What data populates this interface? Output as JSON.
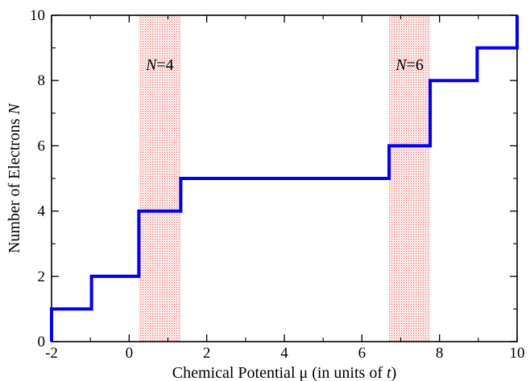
{
  "chart_data": {
    "type": "line",
    "title": "",
    "xlabel": "Chemical Potential μ (in units of t)",
    "xlabel_parts": {
      "prefix": "Chemical Potential μ (in units of ",
      "var": "t",
      "suffix": ")"
    },
    "ylabel": "Number of Electrons N",
    "ylabel_parts": {
      "prefix": "Number of Electrons ",
      "var": "N"
    },
    "xlim": [
      -2,
      10
    ],
    "ylim": [
      0,
      10
    ],
    "xticks": [
      -2,
      0,
      2,
      4,
      6,
      8,
      10
    ],
    "yticks": [
      0,
      2,
      4,
      6,
      8,
      10
    ],
    "grid": false,
    "series": [
      {
        "step": true,
        "color": "#0000ee",
        "x": [
          -2.0,
          -2.0,
          -0.97,
          -0.97,
          0.25,
          0.25,
          1.33,
          1.33,
          6.7,
          6.7,
          7.76,
          7.76,
          8.97,
          8.97,
          10.0,
          10.0
        ],
        "y": [
          0,
          1,
          1,
          2,
          2,
          4,
          4,
          5,
          5,
          6,
          6,
          8,
          8,
          9,
          9,
          10
        ]
      }
    ],
    "shaded_regions": [
      {
        "x_range": [
          0.25,
          1.33
        ],
        "label_var": "N",
        "label_rest": "=4",
        "label_y": 8.5,
        "color": "#e03030"
      },
      {
        "x_range": [
          6.7,
          7.76
        ],
        "label_var": "N",
        "label_rest": "=6",
        "label_y": 8.5,
        "color": "#e03030"
      }
    ]
  }
}
